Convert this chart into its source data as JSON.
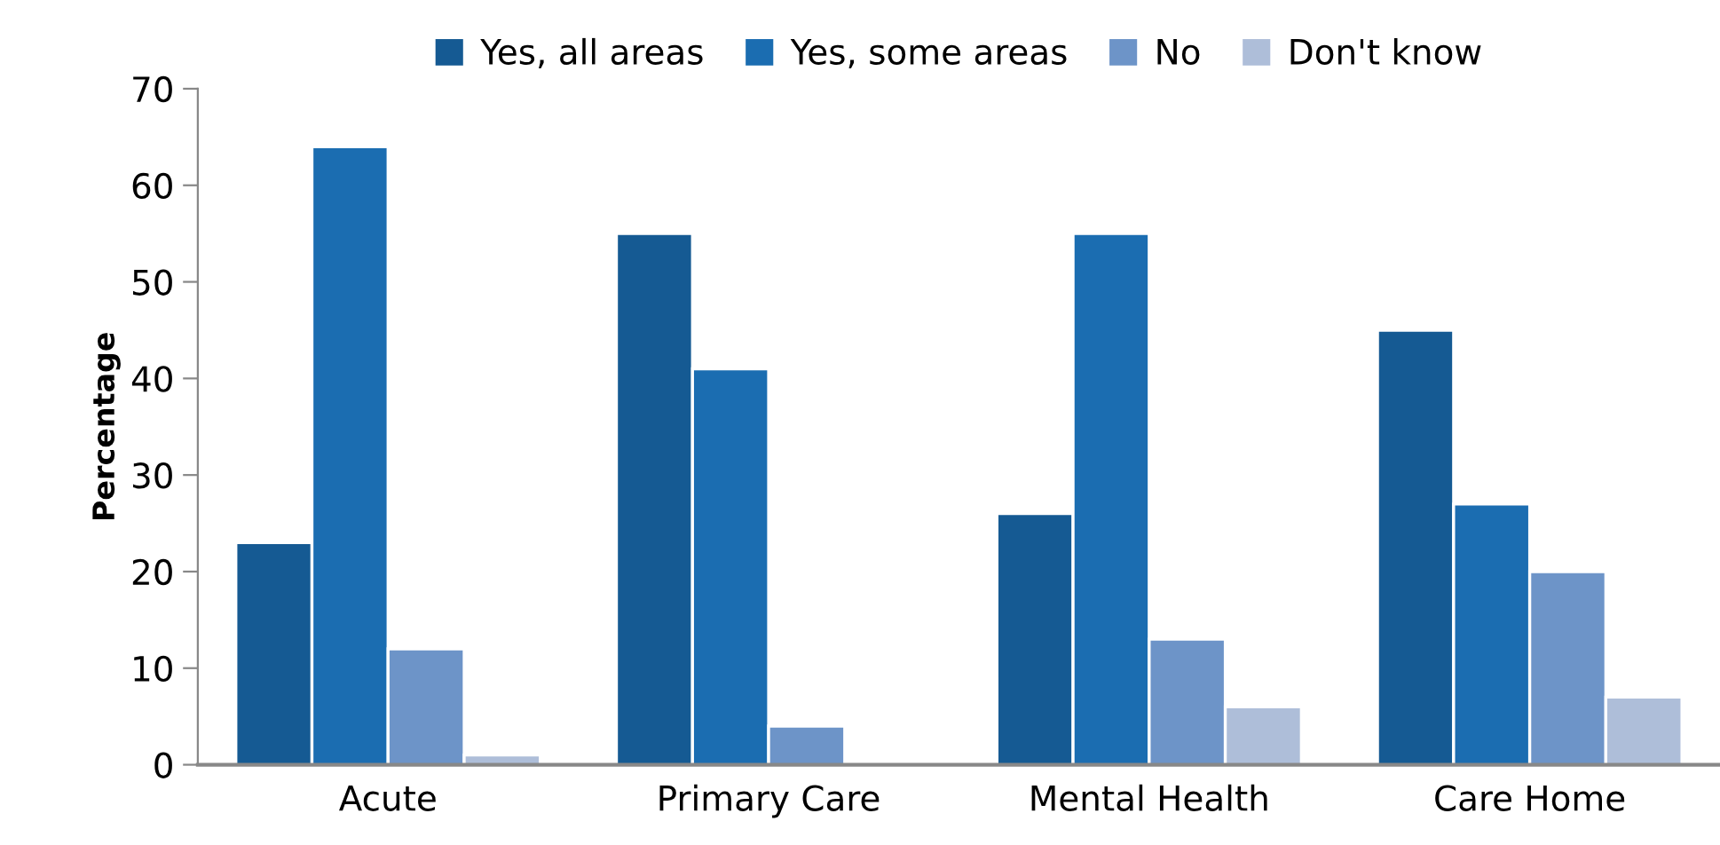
{
  "chart_data": {
    "type": "bar",
    "ylabel": "Percentage",
    "categories": [
      "Acute",
      "Primary Care",
      "Mental Health",
      "Care Home"
    ],
    "series": [
      {
        "name": "Yes, all areas",
        "color": "#155a93",
        "values": [
          23,
          55,
          26,
          45
        ]
      },
      {
        "name": "Yes, some areas",
        "color": "#1b6db1",
        "values": [
          64,
          41,
          55,
          27
        ]
      },
      {
        "name": "No",
        "color": "#6d94c8",
        "values": [
          12,
          4,
          13,
          20
        ]
      },
      {
        "name": "Don't know",
        "color": "#aebed9",
        "values": [
          1,
          null,
          6,
          7
        ]
      }
    ],
    "ylim": [
      0,
      70
    ],
    "yticks": [
      0,
      10,
      20,
      30,
      40,
      50,
      60,
      70
    ],
    "grid": false,
    "legend": "top"
  }
}
